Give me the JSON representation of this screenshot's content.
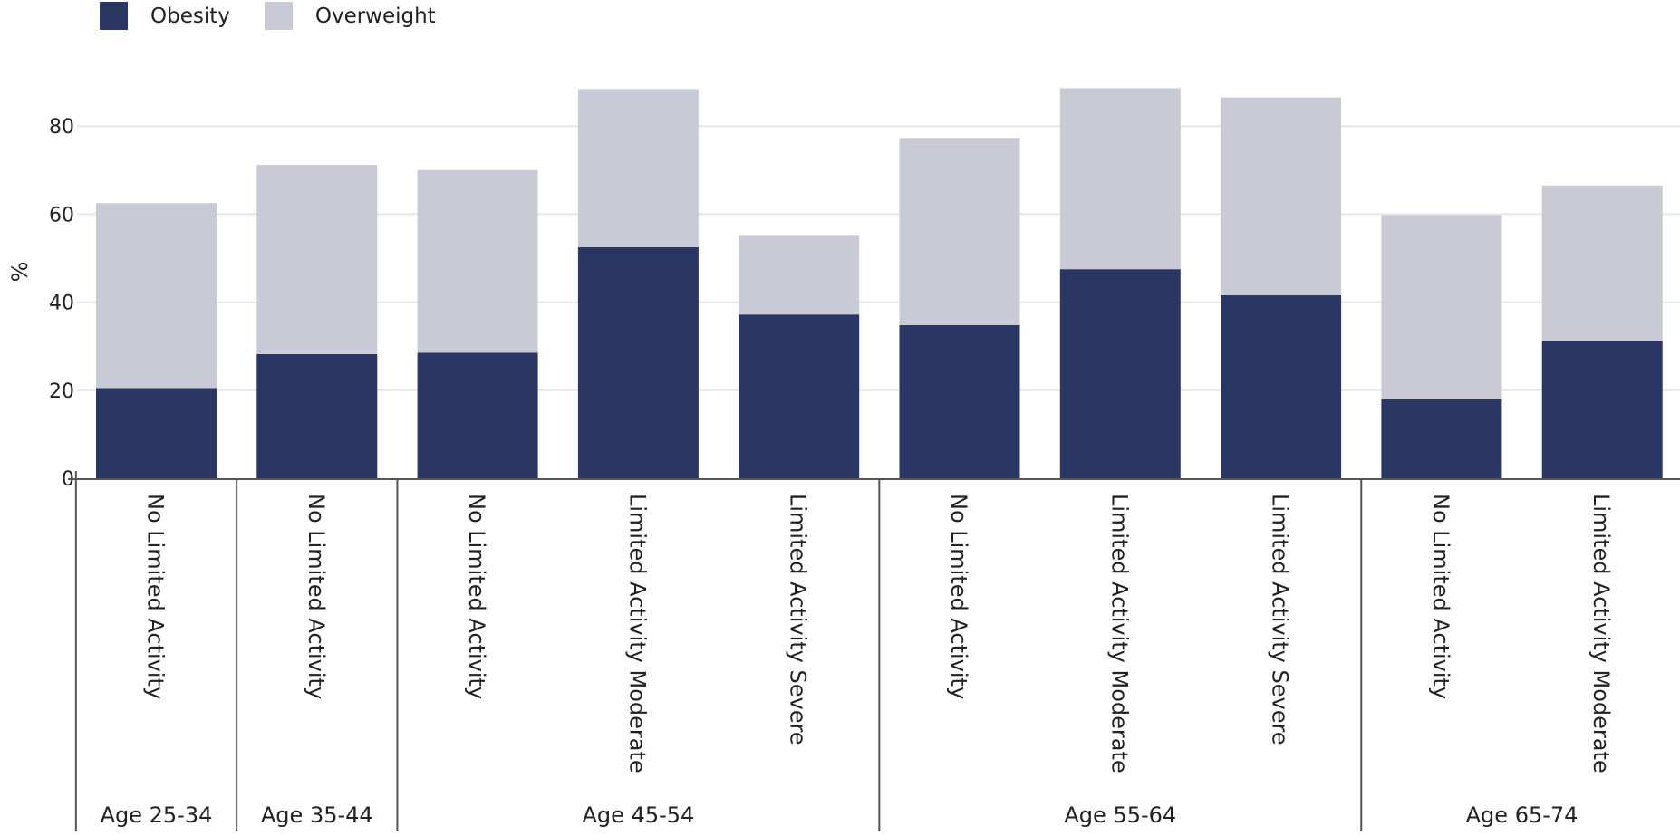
{
  "legend": [
    {
      "label": "Obesity",
      "color": "#2a3663"
    },
    {
      "label": "Overweight",
      "color": "#c9cad6"
    }
  ],
  "colors": {
    "grid": "#e6e6e6",
    "axis": "#555555",
    "text": "#222222"
  },
  "chart_data": {
    "type": "bar",
    "stacked": true,
    "ylabel": "%",
    "xlabel": "",
    "ylim": [
      0,
      90
    ],
    "yticks": [
      0,
      20,
      40,
      60,
      80
    ],
    "grid": true,
    "legend_position": "top-left",
    "categories": [
      "No Limited Activity",
      "No Limited Activity",
      "No Limited Activity",
      "Limited Activity Moderate",
      "Limited Activity Severe",
      "No Limited Activity",
      "Limited Activity Moderate",
      "Limited Activity Severe",
      "No Limited Activity",
      "Limited Activity Moderate"
    ],
    "groups": [
      {
        "label": "Age 25-34",
        "count": 1
      },
      {
        "label": "Age 35-44",
        "count": 1
      },
      {
        "label": "Age 45-54",
        "count": 3
      },
      {
        "label": "Age 55-64",
        "count": 3
      },
      {
        "label": "Age 65-74",
        "count": 2
      }
    ],
    "series": [
      {
        "name": "Obesity",
        "values": [
          20.5,
          28.2,
          28.5,
          52.5,
          37.2,
          34.8,
          47.5,
          41.6,
          17.9,
          31.3
        ]
      },
      {
        "name": "Overweight",
        "values": [
          42.0,
          43.0,
          41.5,
          35.9,
          17.9,
          42.5,
          41.1,
          44.9,
          41.9,
          35.2
        ]
      }
    ]
  }
}
